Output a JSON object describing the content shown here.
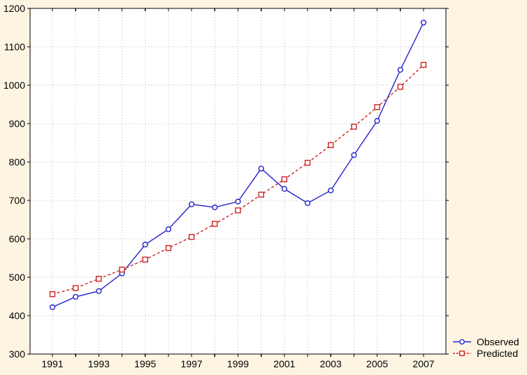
{
  "window": {
    "background_color": "#FDF5E2",
    "plot_background_color": "#FFFFFF",
    "grid_color": "#BBBBBB",
    "axis_color": "#000000"
  },
  "chart_data": {
    "type": "line",
    "title": "",
    "xlabel": "",
    "ylabel": "",
    "x": [
      1991,
      1992,
      1993,
      1994,
      1995,
      1996,
      1997,
      1998,
      1999,
      2000,
      2001,
      2002,
      2003,
      2004,
      2005,
      2006,
      2007
    ],
    "x_tick_labels": [
      "1991",
      "1993",
      "1995",
      "1997",
      "1999",
      "2001",
      "2003",
      "2005",
      "2007"
    ],
    "y_ticks": [
      300,
      400,
      500,
      600,
      700,
      800,
      900,
      1000,
      1100,
      1200
    ],
    "ylim": [
      300,
      1200
    ],
    "grid": true,
    "legend_position": "bottom-right",
    "series": [
      {
        "name": "Observed",
        "color": "#2222CC",
        "line_style": "solid",
        "marker": "circle",
        "values": [
          422,
          449,
          464,
          510,
          585,
          625,
          690,
          682,
          697,
          783,
          730,
          693,
          726,
          818,
          907,
          1040,
          1163
        ]
      },
      {
        "name": "Predicted",
        "color": "#CC2222",
        "line_style": "dashed",
        "marker": "square",
        "values": [
          456,
          472,
          496,
          520,
          546,
          576,
          605,
          639,
          674,
          715,
          755,
          798,
          844,
          892,
          943,
          996,
          1053
        ]
      }
    ]
  }
}
